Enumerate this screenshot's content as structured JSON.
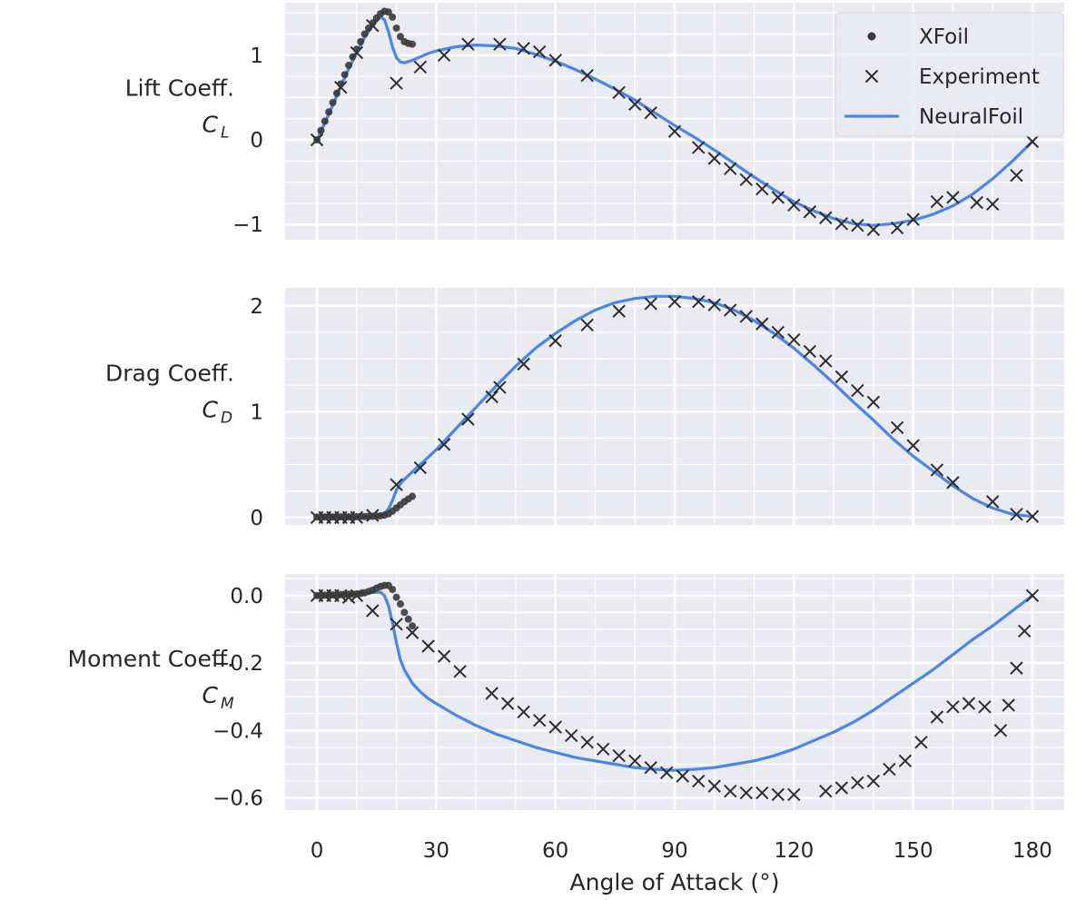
{
  "colors": {
    "panel_bg": "#EAEAF2",
    "grid_major": "#FFFFFF",
    "grid_minor": "#F5F5F9",
    "xfoil": "#3A3A3A",
    "experiment": "#2E2E2E",
    "neuralfoil": "#4A86E8",
    "text": "#262626"
  },
  "chart_data": [
    {
      "type": "scatter",
      "panel": "lift",
      "ylabel": "Lift Coeff.",
      "ylabel_symbol": "C",
      "ylabel_subscript": "L",
      "xlim": [
        -8,
        188
      ],
      "ylim": [
        -1.18,
        1.62
      ],
      "yticks": [
        -1,
        0,
        1
      ],
      "ytick_labels": [
        "−1",
        "0",
        "1"
      ],
      "legend_placement": "top-right",
      "legend": [
        {
          "name": "XFoil",
          "marker": "dot"
        },
        {
          "name": "Experiment",
          "marker": "x"
        },
        {
          "name": "NeuralFoil",
          "marker": "line"
        }
      ],
      "series": [
        {
          "name": "XFoil",
          "marker": "dot",
          "x": [
            0,
            1,
            2,
            3,
            4,
            5,
            6,
            7,
            8,
            9,
            10,
            11,
            12,
            13,
            14,
            15,
            16,
            17,
            18,
            19,
            20,
            21,
            22,
            23,
            24
          ],
          "y": [
            0,
            0.11,
            0.22,
            0.33,
            0.44,
            0.55,
            0.66,
            0.77,
            0.88,
            0.98,
            1.07,
            1.16,
            1.25,
            1.32,
            1.38,
            1.44,
            1.49,
            1.52,
            1.51,
            1.45,
            1.32,
            1.22,
            1.16,
            1.14,
            1.13
          ]
        },
        {
          "name": "Experiment",
          "marker": "x",
          "x": [
            0,
            6,
            10,
            14,
            20,
            26,
            32,
            38,
            46,
            52,
            56,
            60,
            68,
            76,
            80,
            84,
            90,
            96,
            100,
            104,
            108,
            112,
            116,
            120,
            124,
            128,
            132,
            136,
            140,
            146,
            150,
            156,
            160,
            166,
            170,
            176,
            180
          ],
          "y": [
            0,
            0.62,
            1.03,
            1.35,
            0.67,
            0.86,
            1.0,
            1.13,
            1.13,
            1.08,
            1.04,
            0.94,
            0.76,
            0.56,
            0.42,
            0.32,
            0.1,
            -0.09,
            -0.22,
            -0.34,
            -0.47,
            -0.58,
            -0.68,
            -0.77,
            -0.85,
            -0.92,
            -0.99,
            -1.01,
            -1.06,
            -1.04,
            -0.94,
            -0.73,
            -0.68,
            -0.74,
            -0.76,
            -0.42,
            -0.02
          ]
        },
        {
          "name": "NeuralFoil",
          "marker": "line",
          "x": [
            0,
            2,
            4,
            6,
            8,
            10,
            12,
            14,
            15,
            16,
            17,
            18,
            19,
            20,
            21,
            22,
            24,
            26,
            28,
            30,
            35,
            40,
            45,
            50,
            55,
            60,
            65,
            70,
            75,
            80,
            85,
            90,
            95,
            100,
            105,
            110,
            115,
            120,
            125,
            130,
            135,
            140,
            145,
            150,
            155,
            160,
            165,
            170,
            175,
            180
          ],
          "y": [
            0,
            0.2,
            0.41,
            0.63,
            0.84,
            1.03,
            1.21,
            1.35,
            1.41,
            1.45,
            1.42,
            1.28,
            1.1,
            0.97,
            0.92,
            0.91,
            0.94,
            0.98,
            1.02,
            1.05,
            1.1,
            1.12,
            1.11,
            1.08,
            1.01,
            0.93,
            0.83,
            0.72,
            0.6,
            0.47,
            0.32,
            0.17,
            0.03,
            -0.12,
            -0.28,
            -0.44,
            -0.59,
            -0.73,
            -0.84,
            -0.93,
            -0.99,
            -1.01,
            -0.99,
            -0.95,
            -0.88,
            -0.78,
            -0.64,
            -0.46,
            -0.25,
            -0.02
          ]
        }
      ]
    },
    {
      "type": "scatter",
      "panel": "drag",
      "ylabel": "Drag Coeff.",
      "ylabel_symbol": "C",
      "ylabel_subscript": "D",
      "xlim": [
        -8,
        188
      ],
      "ylim": [
        -0.07,
        2.17
      ],
      "yticks": [
        0,
        1,
        2
      ],
      "ytick_labels": [
        "0",
        "1",
        "2"
      ],
      "series": [
        {
          "name": "XFoil",
          "marker": "dot",
          "x": [
            0,
            1,
            2,
            3,
            4,
            5,
            6,
            7,
            8,
            9,
            10,
            11,
            12,
            13,
            14,
            15,
            16,
            17,
            18,
            19,
            20,
            21,
            22,
            23,
            24
          ],
          "y": [
            0.005,
            0.005,
            0.006,
            0.006,
            0.006,
            0.006,
            0.007,
            0.007,
            0.007,
            0.008,
            0.008,
            0.009,
            0.009,
            0.01,
            0.011,
            0.013,
            0.016,
            0.022,
            0.035,
            0.06,
            0.09,
            0.12,
            0.15,
            0.175,
            0.2
          ]
        },
        {
          "name": "Experiment",
          "marker": "x",
          "x": [
            0,
            2,
            4,
            6,
            8,
            10,
            14,
            20,
            26,
            32,
            38,
            44,
            46,
            52,
            60,
            68,
            76,
            84,
            90,
            96,
            100,
            104,
            108,
            112,
            116,
            120,
            124,
            128,
            132,
            136,
            140,
            146,
            150,
            156,
            160,
            170,
            176,
            180
          ],
          "y": [
            0,
            0,
            0,
            0,
            0,
            0,
            0.02,
            0.31,
            0.47,
            0.69,
            0.93,
            1.14,
            1.23,
            1.45,
            1.67,
            1.82,
            1.95,
            2.02,
            2.04,
            2.04,
            2.01,
            1.96,
            1.9,
            1.83,
            1.75,
            1.68,
            1.57,
            1.48,
            1.33,
            1.2,
            1.09,
            0.85,
            0.68,
            0.45,
            0.33,
            0.15,
            0.03,
            0.01
          ]
        },
        {
          "name": "NeuralFoil",
          "marker": "line",
          "x": [
            0,
            5,
            10,
            14,
            16,
            17,
            18,
            19,
            20,
            21,
            22,
            24,
            26,
            28,
            30,
            35,
            40,
            45,
            50,
            55,
            60,
            65,
            70,
            75,
            80,
            85,
            90,
            95,
            100,
            105,
            110,
            115,
            120,
            125,
            130,
            135,
            140,
            145,
            150,
            155,
            160,
            165,
            170,
            175,
            180
          ],
          "y": [
            0.005,
            0.006,
            0.008,
            0.01,
            0.02,
            0.04,
            0.08,
            0.16,
            0.26,
            0.32,
            0.36,
            0.43,
            0.5,
            0.57,
            0.64,
            0.84,
            1.04,
            1.24,
            1.43,
            1.6,
            1.74,
            1.86,
            1.96,
            2.03,
            2.07,
            2.09,
            2.09,
            2.07,
            2.03,
            1.96,
            1.86,
            1.74,
            1.6,
            1.44,
            1.27,
            1.09,
            0.92,
            0.74,
            0.58,
            0.44,
            0.3,
            0.18,
            0.09,
            0.03,
            0.01
          ]
        }
      ]
    },
    {
      "type": "scatter",
      "panel": "moment",
      "ylabel": "Moment Coeff.",
      "ylabel_symbol": "C",
      "ylabel_subscript": "M",
      "xlabel": "Angle of Attack (°)",
      "xlim": [
        -8,
        188
      ],
      "xticks": [
        0,
        30,
        60,
        90,
        120,
        150,
        180
      ],
      "xtick_labels": [
        "0",
        "30",
        "60",
        "90",
        "120",
        "150",
        "180"
      ],
      "ylim": [
        -0.636,
        0.064
      ],
      "yticks": [
        0.0,
        -0.2,
        -0.4,
        -0.6
      ],
      "ytick_labels": [
        "0.0",
        "−0.2",
        "−0.4",
        "−0.6"
      ],
      "series": [
        {
          "name": "XFoil",
          "marker": "dot",
          "x": [
            0,
            1,
            2,
            3,
            4,
            5,
            6,
            7,
            8,
            9,
            10,
            11,
            12,
            13,
            14,
            15,
            16,
            17,
            18,
            19,
            20,
            21,
            22,
            23,
            24
          ],
          "y": [
            0.0,
            0.0,
            0.001,
            0.002,
            0.002,
            0.002,
            0.003,
            0.003,
            0.004,
            0.004,
            0.005,
            0.006,
            0.008,
            0.012,
            0.016,
            0.022,
            0.027,
            0.03,
            0.03,
            0.018,
            -0.005,
            -0.025,
            -0.05,
            -0.07,
            -0.09
          ]
        },
        {
          "name": "Experiment",
          "marker": "x",
          "x": [
            0,
            2,
            4,
            6,
            8,
            10,
            14,
            20,
            24,
            28,
            32,
            36,
            44,
            48,
            52,
            56,
            60,
            64,
            68,
            72,
            76,
            80,
            84,
            88,
            92,
            96,
            100,
            104,
            108,
            112,
            116,
            120,
            128,
            132,
            136,
            140,
            144,
            148,
            152,
            156,
            160,
            164,
            168,
            172,
            174,
            176,
            178,
            180
          ],
          "y": [
            0.0,
            0.0,
            0.0,
            0.0,
            -0.005,
            0.0,
            -0.045,
            -0.085,
            -0.11,
            -0.15,
            -0.18,
            -0.225,
            -0.29,
            -0.32,
            -0.345,
            -0.37,
            -0.39,
            -0.415,
            -0.435,
            -0.455,
            -0.475,
            -0.49,
            -0.51,
            -0.525,
            -0.535,
            -0.55,
            -0.565,
            -0.58,
            -0.585,
            -0.585,
            -0.59,
            -0.59,
            -0.58,
            -0.57,
            -0.555,
            -0.55,
            -0.515,
            -0.49,
            -0.435,
            -0.36,
            -0.33,
            -0.32,
            -0.33,
            -0.4,
            -0.325,
            -0.215,
            -0.105,
            0.0
          ]
        },
        {
          "name": "NeuralFoil",
          "marker": "line",
          "x": [
            0,
            5,
            10,
            14,
            16,
            17,
            18,
            19,
            20,
            21,
            22,
            24,
            26,
            28,
            30,
            35,
            40,
            45,
            50,
            55,
            60,
            65,
            70,
            75,
            80,
            85,
            90,
            95,
            100,
            105,
            110,
            115,
            120,
            125,
            130,
            135,
            140,
            145,
            150,
            155,
            160,
            165,
            170,
            175,
            180
          ],
          "y": [
            0.0,
            0.0,
            0.005,
            0.01,
            0.01,
            0.0,
            -0.03,
            -0.08,
            -0.14,
            -0.19,
            -0.22,
            -0.26,
            -0.285,
            -0.305,
            -0.32,
            -0.355,
            -0.385,
            -0.41,
            -0.43,
            -0.45,
            -0.465,
            -0.48,
            -0.49,
            -0.5,
            -0.51,
            -0.515,
            -0.518,
            -0.515,
            -0.51,
            -0.5,
            -0.49,
            -0.475,
            -0.455,
            -0.43,
            -0.405,
            -0.375,
            -0.34,
            -0.3,
            -0.26,
            -0.22,
            -0.175,
            -0.13,
            -0.09,
            -0.045,
            0.0
          ]
        }
      ]
    }
  ]
}
